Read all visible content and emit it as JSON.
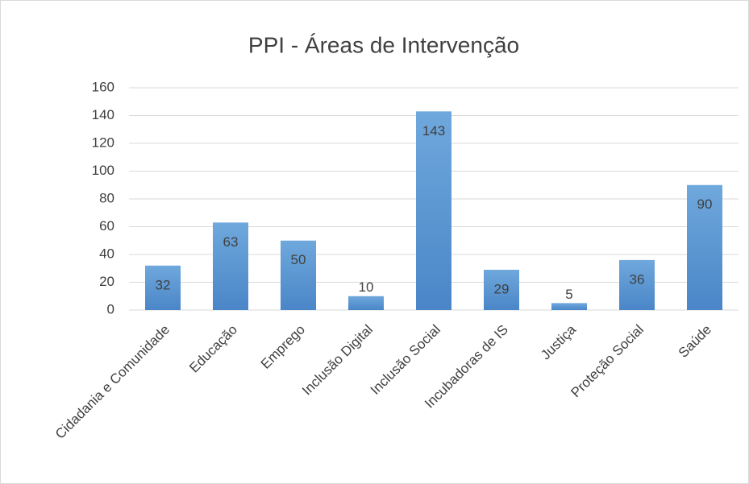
{
  "chart_data": {
    "type": "bar",
    "title": "PPI - Áreas de Intervenção",
    "categories": [
      "Cidadania e Comunidade",
      "Educação",
      "Emprego",
      "Inclusão Digital",
      "Inclusão Social",
      "Incubadoras de IS",
      "Justiça",
      "Proteção Social",
      "Saúde"
    ],
    "values": [
      32,
      63,
      50,
      10,
      143,
      29,
      5,
      36,
      90
    ],
    "color": "#5b9bd5",
    "ylim": [
      0,
      160
    ],
    "yticks": [
      0,
      20,
      40,
      60,
      80,
      100,
      120,
      140,
      160
    ],
    "grid": true
  }
}
